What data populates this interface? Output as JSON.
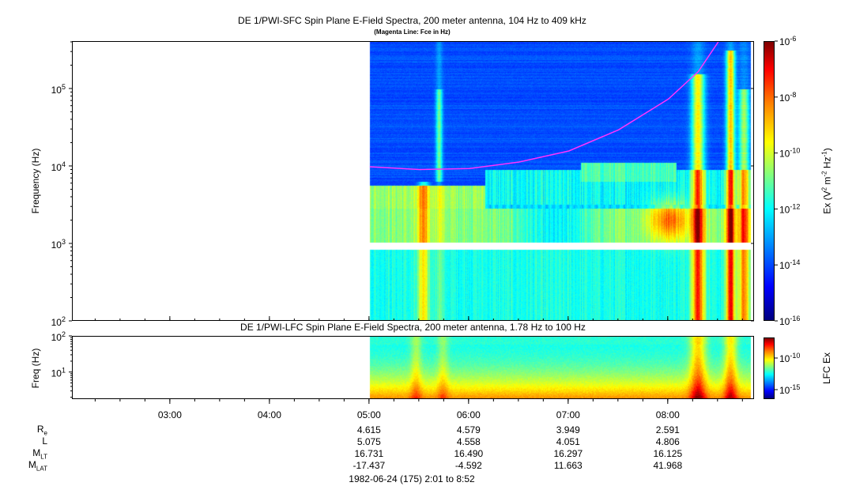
{
  "colors": {
    "background": "#ffffff",
    "magenta_line": "#ff33ff",
    "no_data_band": "#ffffff",
    "colorbar": [
      "#00007f",
      "#0000ff",
      "#0080ff",
      "#00ffff",
      "#80ff80",
      "#ffff00",
      "#ff8000",
      "#ff0000",
      "#7f0000"
    ]
  },
  "top_panel": {
    "title": "DE 1/PWI-SFC  Spin Plane E-Field Spectra, 200 meter antenna, 104 Hz to 409 kHz",
    "subtitle": "(Magenta Line: Fce in Hz)",
    "ylabel": "Frequency (Hz)",
    "colorbar_label_parts": [
      "Ex (V",
      "2",
      " m",
      "-2",
      " Hz",
      "-1",
      ")"
    ]
  },
  "bottom_panel": {
    "title": "DE 1/PWI-LFC  Spin Plane E-Field Spectra, 200 meter antenna, 1.78 Hz to 100 Hz",
    "ylabel": "Freq (Hz)",
    "colorbar_label": "LFC Ex"
  },
  "chart_data": [
    {
      "type": "heatmap",
      "title": "DE 1/PWI-SFC  Spin Plane E-Field Spectra, 200 meter antenna, 104 Hz to 409 kHz",
      "subtitle": "(Magenta Line: Fce in Hz)",
      "ylabel": "Frequency (Hz)",
      "yscale": "log",
      "ylim": [
        100,
        409000
      ],
      "xlim_hours": [
        2.0167,
        8.8667
      ],
      "data_start_hour": 5.0,
      "ytick_values": [
        100,
        1000,
        10000,
        100000
      ],
      "ytick_labels": [
        {
          "base": "10",
          "exp": "2"
        },
        {
          "base": "10",
          "exp": "3"
        },
        {
          "base": "10",
          "exp": "4"
        },
        {
          "base": "10",
          "exp": "5"
        }
      ],
      "colorbar": {
        "scale": "log",
        "range": [
          1e-16,
          1e-06
        ],
        "tick_values": [
          1e-16,
          1e-14,
          1e-12,
          1e-10,
          1e-08,
          1e-06
        ],
        "tick_labels": [
          {
            "base": "10",
            "exp": "-16"
          },
          {
            "base": "10",
            "exp": "-14"
          },
          {
            "base": "10",
            "exp": "-12"
          },
          {
            "base": "10",
            "exp": "-10"
          },
          {
            "base": "10",
            "exp": "-8"
          },
          {
            "base": "10",
            "exp": "-6"
          }
        ]
      },
      "fce_line": {
        "hours": [
          5.0,
          5.5,
          6.0,
          6.5,
          7.0,
          7.5,
          8.0,
          8.3,
          8.5
        ],
        "freq_hz": [
          10000,
          9200,
          9500,
          11500,
          16000,
          30000,
          75000,
          170000,
          409000
        ]
      },
      "no_data_band_hz": [
        850,
        1050
      ]
    },
    {
      "type": "heatmap",
      "title": "DE 1/PWI-LFC  Spin Plane E-Field Spectra, 200 meter antenna, 1.78 Hz to 100 Hz",
      "ylabel": "Freq (Hz)",
      "yscale": "log",
      "ylim": [
        1.78,
        100
      ],
      "ytick_values": [
        10,
        100
      ],
      "ytick_labels": [
        {
          "base": "10",
          "exp": "1"
        },
        {
          "base": "10",
          "exp": "2"
        }
      ],
      "colorbar": {
        "label": "LFC Ex",
        "scale": "log",
        "tick_labels": [
          {
            "base": "10",
            "exp": "-10"
          },
          {
            "base": "10",
            "exp": "-15"
          }
        ]
      }
    }
  ],
  "x_axis": {
    "tick_hours": [
      3,
      4,
      5,
      6,
      7,
      8
    ],
    "tick_labels": [
      "03:00",
      "04:00",
      "05:00",
      "06:00",
      "07:00",
      "08:00"
    ]
  },
  "ephemeris": {
    "rows": [
      {
        "name": "R",
        "sub": "e",
        "values": [
          "4.615",
          "4.579",
          "3.949",
          "2.591"
        ]
      },
      {
        "name": "L",
        "sub": "",
        "values": [
          "5.075",
          "4.558",
          "4.051",
          "4.806"
        ]
      },
      {
        "name": "M",
        "sub": "LT",
        "values": [
          "16.731",
          "16.490",
          "16.297",
          "16.125"
        ]
      },
      {
        "name": "M",
        "sub": "LAT",
        "values": [
          "-17.437",
          "-4.592",
          "11.663",
          "41.968"
        ]
      }
    ],
    "column_hours": [
      5,
      6,
      7,
      8
    ]
  },
  "footer": "1982-06-24 (175) 2:01 to 8:52"
}
